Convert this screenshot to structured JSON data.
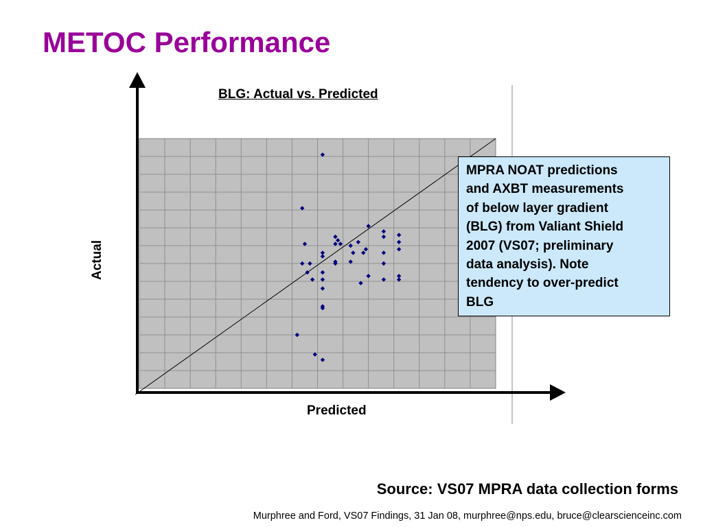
{
  "slide": {
    "title": "METOC Performance",
    "source": "Source:  VS07 MPRA data collection forms",
    "footer": "Murphree and Ford, VS07 Findings, 31 Jan 08, murphree@nps.edu, bruce@clearscienceinc.com"
  },
  "annotation": {
    "lines": [
      "MPRA NOAT predictions",
      "and AXBT measurements",
      "of below layer gradient",
      "(BLG) from Valiant Shield",
      "2007 (VS07; preliminary",
      "data analysis).  Note",
      "tendency to over-predict",
      "BLG"
    ]
  },
  "chart_data": {
    "type": "scatter",
    "title": "BLG: Actual vs. Predicted",
    "xlabel": "Predicted",
    "ylabel": "Actual",
    "xlim": [
      0,
      14
    ],
    "ylim": [
      0,
      14
    ],
    "grid": true,
    "reference_line": "y = x",
    "marker_color": "#000080",
    "plot_background": "#c0c0c0",
    "points": [
      {
        "x": 7.2,
        "y": 13.1
      },
      {
        "x": 6.4,
        "y": 10.1
      },
      {
        "x": 6.5,
        "y": 8.1
      },
      {
        "x": 7.7,
        "y": 8.5
      },
      {
        "x": 7.8,
        "y": 8.3
      },
      {
        "x": 7.7,
        "y": 8.1
      },
      {
        "x": 7.9,
        "y": 8.1
      },
      {
        "x": 9.0,
        "y": 9.1
      },
      {
        "x": 9.6,
        "y": 8.8
      },
      {
        "x": 9.6,
        "y": 8.5
      },
      {
        "x": 8.6,
        "y": 8.2
      },
      {
        "x": 8.4,
        "y": 7.6
      },
      {
        "x": 9.6,
        "y": 7.6
      },
      {
        "x": 9.6,
        "y": 7.0
      },
      {
        "x": 10.2,
        "y": 8.6
      },
      {
        "x": 10.2,
        "y": 8.2
      },
      {
        "x": 10.2,
        "y": 7.8
      },
      {
        "x": 8.3,
        "y": 8.0
      },
      {
        "x": 8.8,
        "y": 7.6
      },
      {
        "x": 8.9,
        "y": 7.8
      },
      {
        "x": 8.3,
        "y": 7.1
      },
      {
        "x": 7.2,
        "y": 7.6
      },
      {
        "x": 7.2,
        "y": 7.4
      },
      {
        "x": 7.7,
        "y": 7.1
      },
      {
        "x": 7.7,
        "y": 7.0
      },
      {
        "x": 6.4,
        "y": 7.0
      },
      {
        "x": 6.7,
        "y": 7.0
      },
      {
        "x": 6.6,
        "y": 6.5
      },
      {
        "x": 6.8,
        "y": 6.1
      },
      {
        "x": 7.2,
        "y": 6.5
      },
      {
        "x": 7.2,
        "y": 6.1
      },
      {
        "x": 7.2,
        "y": 5.6
      },
      {
        "x": 8.7,
        "y": 5.9
      },
      {
        "x": 9.0,
        "y": 6.3
      },
      {
        "x": 9.6,
        "y": 6.1
      },
      {
        "x": 10.2,
        "y": 6.1
      },
      {
        "x": 10.2,
        "y": 6.3
      },
      {
        "x": 7.2,
        "y": 4.6
      },
      {
        "x": 7.2,
        "y": 4.5
      },
      {
        "x": 6.2,
        "y": 3.0
      },
      {
        "x": 6.9,
        "y": 1.9
      },
      {
        "x": 7.2,
        "y": 1.6
      }
    ]
  }
}
